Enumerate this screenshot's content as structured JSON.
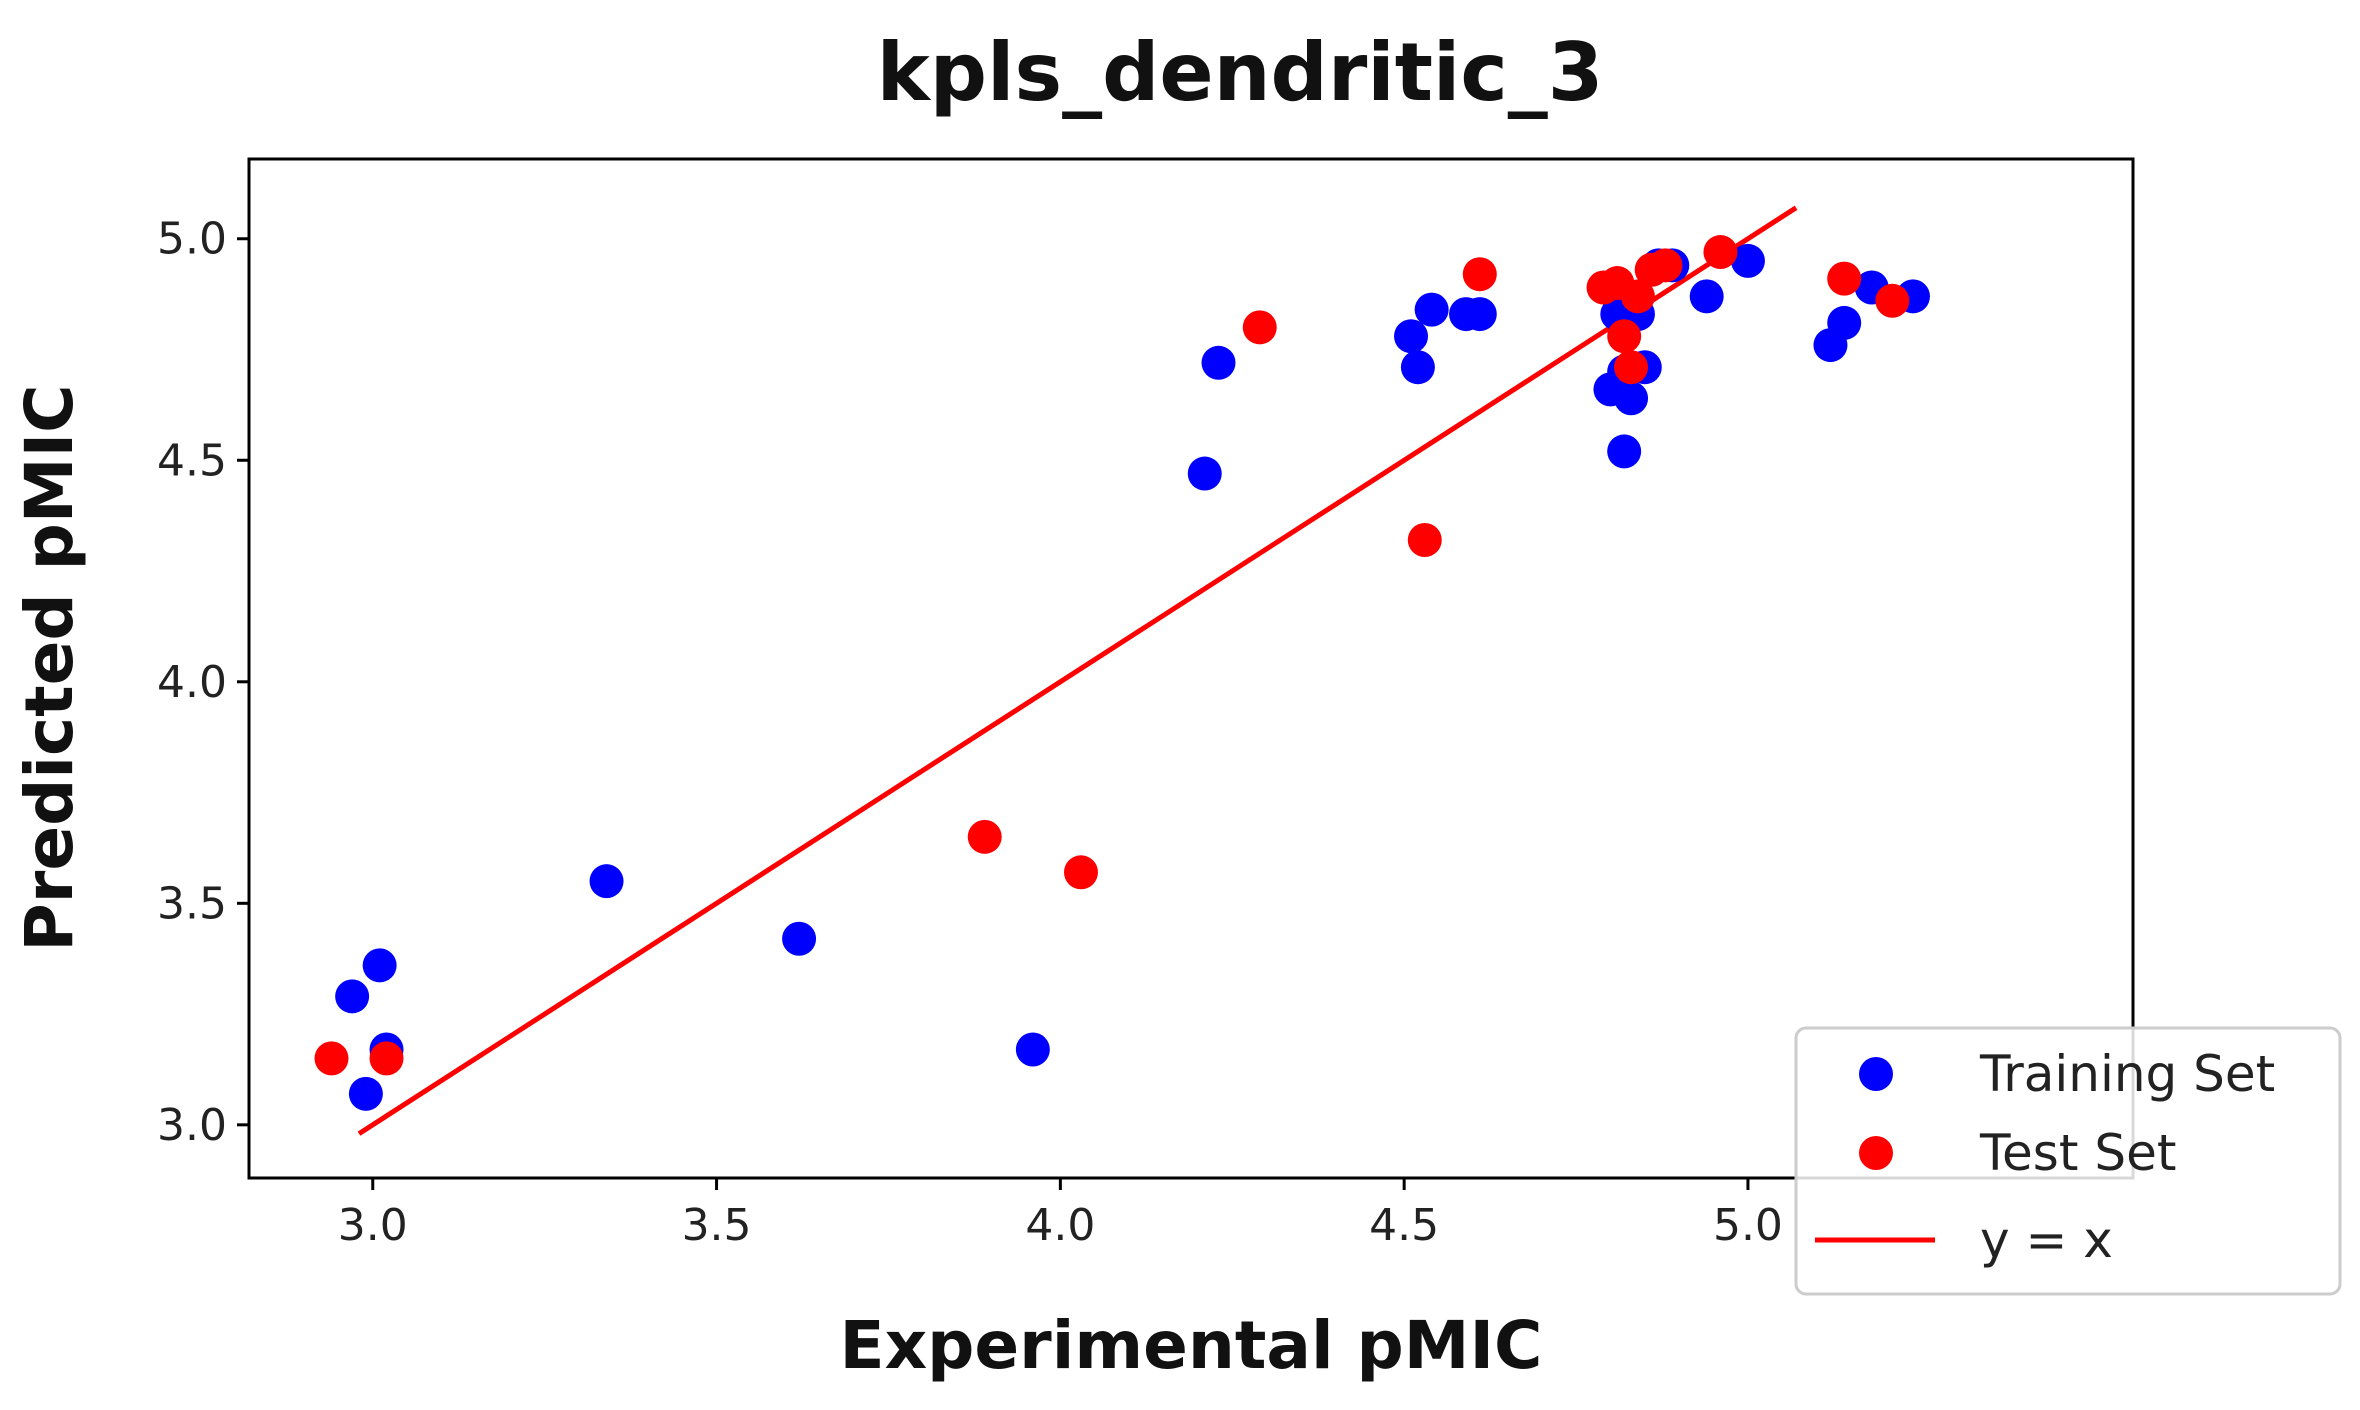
{
  "chart_data": {
    "type": "scatter",
    "title": "kpls_dendritic_3",
    "xlabel": "Experimental pMIC",
    "ylabel": "Predicted pMIC",
    "xlim": [
      2.82,
      5.56
    ],
    "ylim": [
      2.88,
      5.18
    ],
    "xticks": [
      {
        "value": 3.0,
        "label": "3.0"
      },
      {
        "value": 3.5,
        "label": "3.5"
      },
      {
        "value": 4.0,
        "label": "4.0"
      },
      {
        "value": 4.5,
        "label": "4.5"
      },
      {
        "value": 5.0,
        "label": "5.0"
      }
    ],
    "yticks": [
      {
        "value": 3.0,
        "label": "3.0"
      },
      {
        "value": 3.5,
        "label": "3.5"
      },
      {
        "value": 4.0,
        "label": "4.0"
      },
      {
        "value": 4.5,
        "label": "4.5"
      },
      {
        "value": 5.0,
        "label": "5.0"
      }
    ],
    "grid": false,
    "legend_position": "bottom-right",
    "series": [
      {
        "name": "Training Set",
        "color": "#0000ff",
        "kind": "points",
        "points": [
          {
            "x": 2.97,
            "y": 3.29
          },
          {
            "x": 2.99,
            "y": 3.07
          },
          {
            "x": 3.01,
            "y": 3.36
          },
          {
            "x": 3.02,
            "y": 3.17
          },
          {
            "x": 3.34,
            "y": 3.55
          },
          {
            "x": 3.62,
            "y": 3.42
          },
          {
            "x": 3.96,
            "y": 3.17
          },
          {
            "x": 4.21,
            "y": 4.47
          },
          {
            "x": 4.23,
            "y": 4.72
          },
          {
            "x": 4.51,
            "y": 4.78
          },
          {
            "x": 4.52,
            "y": 4.71
          },
          {
            "x": 4.54,
            "y": 4.84
          },
          {
            "x": 4.59,
            "y": 4.83
          },
          {
            "x": 4.61,
            "y": 4.83
          },
          {
            "x": 4.8,
            "y": 4.66
          },
          {
            "x": 4.81,
            "y": 4.83
          },
          {
            "x": 4.82,
            "y": 4.7
          },
          {
            "x": 4.82,
            "y": 4.52
          },
          {
            "x": 4.83,
            "y": 4.64
          },
          {
            "x": 4.84,
            "y": 4.83
          },
          {
            "x": 4.85,
            "y": 4.71
          },
          {
            "x": 4.87,
            "y": 4.94
          },
          {
            "x": 4.89,
            "y": 4.94
          },
          {
            "x": 4.94,
            "y": 4.87
          },
          {
            "x": 5.0,
            "y": 4.95
          },
          {
            "x": 5.12,
            "y": 4.76
          },
          {
            "x": 5.14,
            "y": 4.81
          },
          {
            "x": 5.18,
            "y": 4.89
          },
          {
            "x": 5.24,
            "y": 4.87
          }
        ]
      },
      {
        "name": "Test Set",
        "color": "#ff0000",
        "kind": "points",
        "points": [
          {
            "x": 2.94,
            "y": 3.15
          },
          {
            "x": 3.02,
            "y": 3.15
          },
          {
            "x": 3.89,
            "y": 3.65
          },
          {
            "x": 4.03,
            "y": 3.57
          },
          {
            "x": 4.29,
            "y": 4.8
          },
          {
            "x": 4.53,
            "y": 4.32
          },
          {
            "x": 4.61,
            "y": 4.92
          },
          {
            "x": 4.79,
            "y": 4.89
          },
          {
            "x": 4.81,
            "y": 4.9
          },
          {
            "x": 4.82,
            "y": 4.78
          },
          {
            "x": 4.83,
            "y": 4.71
          },
          {
            "x": 4.84,
            "y": 4.87
          },
          {
            "x": 4.86,
            "y": 4.93
          },
          {
            "x": 4.88,
            "y": 4.94
          },
          {
            "x": 4.96,
            "y": 4.97
          },
          {
            "x": 5.14,
            "y": 4.91
          },
          {
            "x": 5.21,
            "y": 4.86
          }
        ]
      },
      {
        "name": "y = x",
        "color": "#ff0000",
        "kind": "line",
        "points": [
          {
            "x": 2.98,
            "y": 2.98
          },
          {
            "x": 5.07,
            "y": 5.07
          }
        ]
      }
    ]
  }
}
